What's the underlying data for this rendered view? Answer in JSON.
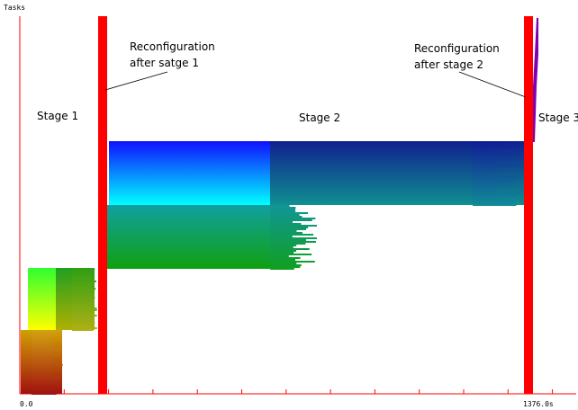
{
  "chart_data": {
    "type": "bar",
    "orientation": "horizontal-gantt",
    "ylabel": "Tasks",
    "x_tick_labels": [
      "0.0",
      "1376.0s"
    ],
    "xlim": [
      0,
      1376
    ],
    "grid": false,
    "stage_labels": [
      "Stage 1",
      "Stage 2",
      "Stage 3"
    ],
    "reconfigurations": [
      {
        "lines": [
          "Reconfiguration",
          "after satge 1"
        ],
        "color": "#ff0000"
      },
      {
        "lines": [
          "Reconfiguration",
          "after stage 2"
        ],
        "color": "#ff0000"
      }
    ],
    "task_groups": [
      {
        "name": "stage1-bottom",
        "color_bottom": "#a01010",
        "color_top": "#f0f000"
      },
      {
        "name": "stage1-top",
        "color_bottom": "#f0f000",
        "color_top": "#30ff30"
      },
      {
        "name": "stage2-lower",
        "color_bottom": "#10a010",
        "color_top": "#10a0a0"
      },
      {
        "name": "stage2-upper",
        "color_bottom": "#00ffff",
        "color_top": "#1010ff"
      },
      {
        "name": "stage3",
        "color_bottom": "#3030ff",
        "color_top": "#a000a0"
      }
    ],
    "colors": {
      "axis": "#ff0000",
      "reconfiguration_bar": "#ff0000",
      "tick": "#ff0000"
    }
  }
}
